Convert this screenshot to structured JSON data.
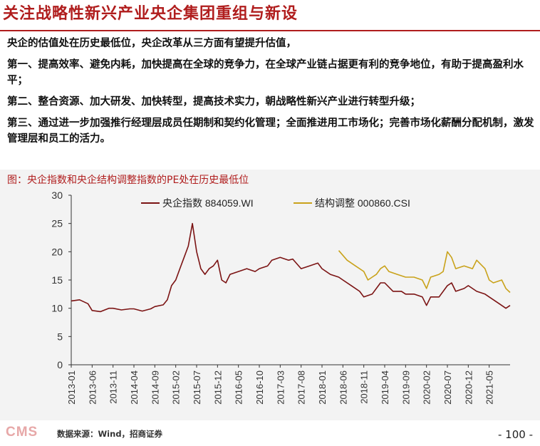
{
  "header": {
    "title": "关注战略性新兴产业央企集团重组与新设"
  },
  "body": {
    "paragraphs": [
      "央企的估值处在历史最低位，央企改革从三方面有望提升估值，",
      "第一、提高效率、避免内耗，加快提高在全球的竞争力，在全球产业链占据更有利的竞争地位，有助于提高盈利水平；",
      "第二、整合资源、加大研发、加快转型，提高技术实力，朝战略性新兴产业进行转型升级；",
      "第三、通过进一步加强推行经理层成员任期制和契约化管理；全面推进用工市场化；完善市场化薪酬分配机制，激发管理层和员工的活力。"
    ]
  },
  "figure": {
    "caption": "图：央企指数和央企结构调整指数的PE处在历史最低位"
  },
  "chart_data": {
    "type": "line",
    "ylim": [
      0,
      30
    ],
    "yticks": [
      0,
      5,
      10,
      15,
      20,
      25,
      30
    ],
    "xtick_labels": [
      "2013-01",
      "2013-06",
      "2013-11",
      "2014-04",
      "2014-09",
      "2015-02",
      "2015-07",
      "2015-12",
      "2016-05",
      "2016-10",
      "2017-03",
      "2017-08",
      "2018-01",
      "2018-06",
      "2018-11",
      "2019-04",
      "2019-09",
      "2020-02",
      "2020-07",
      "2020-12",
      "2021-05"
    ],
    "legend_position": "top",
    "grid": false,
    "series": [
      {
        "name": "央企指数 884059.WI",
        "color": "#7b1313",
        "x": [
          "2013-01",
          "2013-03",
          "2013-05",
          "2013-06",
          "2013-08",
          "2013-10",
          "2013-11",
          "2014-01",
          "2014-03",
          "2014-04",
          "2014-06",
          "2014-08",
          "2014-09",
          "2014-11",
          "2014-12",
          "2015-01",
          "2015-02",
          "2015-03",
          "2015-04",
          "2015-05",
          "2015-06",
          "2015-07",
          "2015-08",
          "2015-09",
          "2015-10",
          "2015-11",
          "2015-12",
          "2016-01",
          "2016-02",
          "2016-03",
          "2016-05",
          "2016-07",
          "2016-09",
          "2016-10",
          "2016-12",
          "2017-01",
          "2017-03",
          "2017-05",
          "2017-06",
          "2017-08",
          "2017-10",
          "2017-12",
          "2018-01",
          "2018-03",
          "2018-05",
          "2018-06",
          "2018-08",
          "2018-10",
          "2018-11",
          "2019-01",
          "2019-03",
          "2019-04",
          "2019-06",
          "2019-08",
          "2019-09",
          "2019-11",
          "2020-01",
          "2020-02",
          "2020-03",
          "2020-05",
          "2020-07",
          "2020-08",
          "2020-09",
          "2020-11",
          "2020-12",
          "2021-02",
          "2021-04",
          "2021-05",
          "2021-07",
          "2021-09",
          "2021-10"
        ],
        "values": [
          11.3,
          11.5,
          10.8,
          9.6,
          9.4,
          10.0,
          10.0,
          9.7,
          9.9,
          9.9,
          9.5,
          9.9,
          10.3,
          10.6,
          11.5,
          14.0,
          15.0,
          17.0,
          19.0,
          21.0,
          25.0,
          20.0,
          17.0,
          16.0,
          17.0,
          17.5,
          18.5,
          15.0,
          14.5,
          16.0,
          16.5,
          17.0,
          16.5,
          17.0,
          17.5,
          18.5,
          19.0,
          18.5,
          18.7,
          17.0,
          17.5,
          18.0,
          17.0,
          16.0,
          15.5,
          15.0,
          14.0,
          13.0,
          12.0,
          12.5,
          14.5,
          14.5,
          13.0,
          13.0,
          12.5,
          12.5,
          12.0,
          10.5,
          12.0,
          12.0,
          14.0,
          14.5,
          13.0,
          13.5,
          14.0,
          13.0,
          12.5,
          12.0,
          11.0,
          10.0,
          10.5
        ]
      },
      {
        "name": "结构调整 000860.CSI",
        "color": "#c9a21a",
        "x": [
          "2018-05",
          "2018-07",
          "2018-09",
          "2018-11",
          "2018-12",
          "2019-01",
          "2019-02",
          "2019-03",
          "2019-04",
          "2019-05",
          "2019-07",
          "2019-09",
          "2019-11",
          "2020-01",
          "2020-02",
          "2020-03",
          "2020-05",
          "2020-06",
          "2020-07",
          "2020-08",
          "2020-09",
          "2020-11",
          "2021-01",
          "2021-02",
          "2021-04",
          "2021-05",
          "2021-06",
          "2021-08",
          "2021-09",
          "2021-10"
        ],
        "values": [
          20.2,
          18.5,
          17.5,
          16.5,
          15.0,
          15.5,
          16.0,
          17.0,
          17.5,
          16.5,
          16.0,
          15.5,
          15.5,
          15.0,
          13.5,
          15.5,
          16.0,
          16.5,
          20.0,
          19.0,
          17.0,
          17.5,
          17.0,
          18.5,
          17.0,
          15.0,
          14.5,
          15.0,
          13.5,
          12.8
        ]
      }
    ]
  },
  "footer": {
    "logo_text": "CMS",
    "source": "数据来源：Wind，招商证券",
    "page_number": "- 100 -"
  },
  "colors": {
    "accent": "#b01d1d",
    "series1": "#7b1313",
    "series2": "#c9a21a"
  }
}
